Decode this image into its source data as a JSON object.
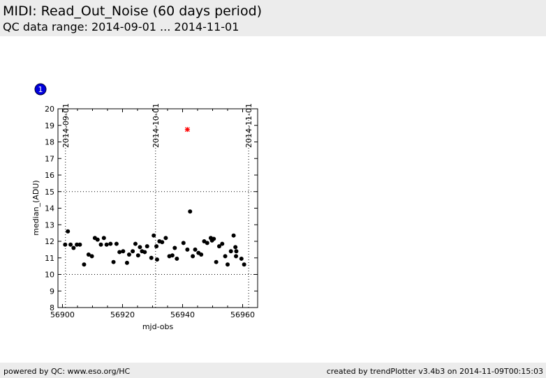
{
  "header": {
    "title": "MIDI: Read_Out_Noise (60 days period)",
    "subtitle": "QC data range: 2014-09-01 ... 2014-11-01"
  },
  "footer": {
    "left": "powered by QC: www.eso.org/HC",
    "right": "created by trendPlotter v3.4b3 on 2014-11-09T00:15:03"
  },
  "badge": {
    "label": "1",
    "color": "#0000dd"
  },
  "colors": {
    "points": "#000000",
    "outlier": "#ff0000"
  },
  "chart_data": {
    "type": "scatter",
    "xlabel": "mjd-obs",
    "ylabel": "median_(ADU)",
    "xlim": [
      56898.5,
      56965
    ],
    "ylim": [
      8,
      20
    ],
    "x_ticks": [
      56900,
      56920,
      56940,
      56960
    ],
    "y_ticks": [
      8,
      9,
      10,
      11,
      12,
      13,
      14,
      15,
      16,
      17,
      18,
      19,
      20
    ],
    "h_gridlines": [
      10,
      15
    ],
    "date_markers": [
      {
        "label": "2014-09-01",
        "mjd": 56901.0
      },
      {
        "label": "2014-10-01",
        "mjd": 56931.0
      },
      {
        "label": "2014-11-01",
        "mjd": 56962.0
      }
    ],
    "points": [
      [
        56900.9,
        11.8
      ],
      [
        56901.8,
        12.6
      ],
      [
        56902.7,
        11.8
      ],
      [
        56903.7,
        11.6
      ],
      [
        56904.8,
        11.8
      ],
      [
        56905.8,
        11.8
      ],
      [
        56907.2,
        10.6
      ],
      [
        56908.7,
        11.2
      ],
      [
        56909.8,
        11.1
      ],
      [
        56910.8,
        12.2
      ],
      [
        56911.7,
        12.1
      ],
      [
        56912.8,
        11.8
      ],
      [
        56913.8,
        12.2
      ],
      [
        56914.7,
        11.8
      ],
      [
        56916.0,
        11.85
      ],
      [
        56917.0,
        10.75
      ],
      [
        56918.0,
        11.85
      ],
      [
        56919.0,
        11.35
      ],
      [
        56920.2,
        11.4
      ],
      [
        56921.5,
        10.7
      ],
      [
        56922.2,
        11.2
      ],
      [
        56923.4,
        11.4
      ],
      [
        56924.3,
        11.85
      ],
      [
        56925.2,
        11.15
      ],
      [
        56925.8,
        11.65
      ],
      [
        56926.5,
        11.4
      ],
      [
        56927.4,
        11.35
      ],
      [
        56928.2,
        11.7
      ],
      [
        56929.6,
        11.0
      ],
      [
        56930.4,
        12.35
      ],
      [
        56931.3,
        11.7
      ],
      [
        56931.5,
        10.9
      ],
      [
        56932.3,
        12.0
      ],
      [
        56933.2,
        11.95
      ],
      [
        56934.4,
        12.2
      ],
      [
        56935.6,
        11.1
      ],
      [
        56936.6,
        11.15
      ],
      [
        56937.4,
        11.6
      ],
      [
        56938.1,
        10.95
      ],
      [
        56940.3,
        11.9
      ],
      [
        56941.6,
        11.5
      ],
      [
        56942.5,
        13.8
      ],
      [
        56943.4,
        11.1
      ],
      [
        56944.2,
        11.5
      ],
      [
        56945.3,
        11.3
      ],
      [
        56946.2,
        11.2
      ],
      [
        56947.2,
        12.0
      ],
      [
        56948.2,
        11.9
      ],
      [
        56949.4,
        12.2
      ],
      [
        56949.8,
        12.05
      ],
      [
        56950.4,
        12.15
      ],
      [
        56951.2,
        10.75
      ],
      [
        56952.2,
        11.7
      ],
      [
        56953.2,
        11.85
      ],
      [
        56954.2,
        11.1
      ],
      [
        56955.0,
        10.6
      ],
      [
        56956.1,
        11.4
      ],
      [
        56957.0,
        12.35
      ],
      [
        56957.6,
        11.65
      ],
      [
        56957.9,
        11.4
      ],
      [
        56957.8,
        11.1
      ],
      [
        56959.6,
        10.95
      ],
      [
        56960.5,
        10.6
      ]
    ],
    "outliers": [
      [
        56941.6,
        18.75
      ]
    ]
  }
}
